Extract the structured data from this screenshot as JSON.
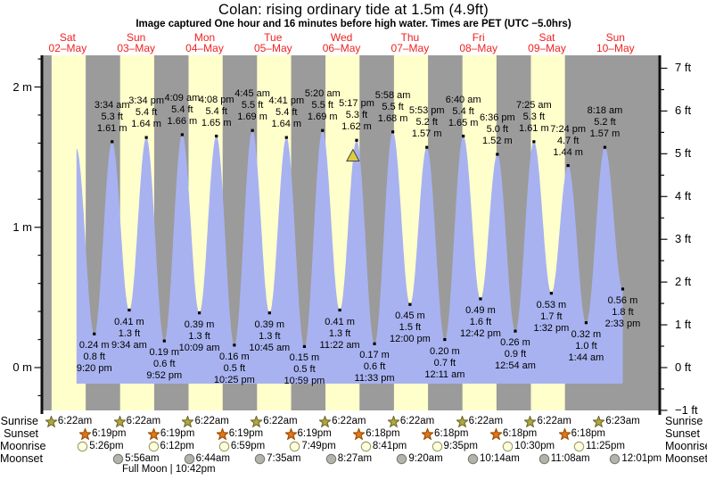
{
  "header": {
    "title": "Colan: rising  ordinary tide at 1.5m (4.9ft)",
    "subtitle": "Image captured One hour and 16 minutes before high water. Times are PET (UTC −5.0hrs)"
  },
  "day_labels": [
    {
      "weekday": "Sat",
      "date": "02–May"
    },
    {
      "weekday": "Sun",
      "date": "03–May"
    },
    {
      "weekday": "Mon",
      "date": "04–May"
    },
    {
      "weekday": "Tue",
      "date": "05–May"
    },
    {
      "weekday": "Wed",
      "date": "06–May"
    },
    {
      "weekday": "Thu",
      "date": "07–May"
    },
    {
      "weekday": "Fri",
      "date": "08–May"
    },
    {
      "weekday": "Sat",
      "date": "09–May"
    },
    {
      "weekday": "Sun",
      "date": "10–May"
    }
  ],
  "colors": {
    "day_band": "#ffffcc",
    "night_band": "#9b9b9b",
    "water": "#a8b2f0",
    "date_red": "#ee2222",
    "sunrise_star": "#b5a642",
    "sunrise_star_edge": "#6b6b2a",
    "sunset_star": "#e07818",
    "sunset_star_edge": "#9a4a00",
    "moonrise_circle": "#ffffdd",
    "moonrise_circle_edge": "#999966",
    "moonset_circle": "#b3b3ab",
    "moonset_circle_edge": "#7a7a72",
    "marker_fill": "#ddcc44",
    "marker_edge": "#444444"
  },
  "chart_data": {
    "type": "area",
    "title": "Colan tide heights 02-May to 10-May",
    "x_axis": "days (midnight-to-midnight, 9 days)",
    "y_left": {
      "unit": "m",
      "ticks": [
        0,
        1,
        2
      ],
      "tick_labels": [
        "0 m",
        "1 m",
        "2 m"
      ],
      "minor_step": 0.2,
      "range": [
        -0.3,
        2.25
      ]
    },
    "y_right": {
      "unit": "ft",
      "ticks": [
        -1,
        0,
        1,
        2,
        3,
        4,
        5,
        6,
        7
      ],
      "tick_labels": [
        "−1 ft",
        "0 ft",
        "1 ft",
        "2 ft",
        "3 ft",
        "4 ft",
        "5 ft",
        "6 ft",
        "7 ft"
      ],
      "minor_step": 0.5
    },
    "events": [
      {
        "type": "high",
        "t": 15.08,
        "m": 1.56,
        "label": []
      },
      {
        "type": "low",
        "t": 21.33,
        "m": 0.24,
        "label": [
          "0.24 m",
          "0.8 ft",
          "9:20 pm"
        ]
      },
      {
        "type": "high",
        "t": 27.57,
        "m": 1.61,
        "label": [
          "3:34 am",
          "5.3 ft",
          "1.61 m"
        ]
      },
      {
        "type": "low",
        "t": 33.57,
        "m": 0.41,
        "label": [
          "0.41 m",
          "1.3 ft",
          "9:34 am"
        ]
      },
      {
        "type": "high",
        "t": 39.57,
        "m": 1.64,
        "label": [
          "3:34 pm",
          "5.4 ft",
          "1.64 m"
        ]
      },
      {
        "type": "low",
        "t": 45.87,
        "m": 0.19,
        "label": [
          "0.19 m",
          "0.6 ft",
          "9:52 pm"
        ]
      },
      {
        "type": "high",
        "t": 52.15,
        "m": 1.66,
        "label": [
          "4:09 am",
          "5.4 ft",
          "1.66 m"
        ]
      },
      {
        "type": "low",
        "t": 58.15,
        "m": 0.39,
        "label": [
          "0.39 m",
          "1.3 ft",
          "10:09 am"
        ]
      },
      {
        "type": "high",
        "t": 64.13,
        "m": 1.65,
        "label": [
          "4:08 pm",
          "5.4 ft",
          "1.65 m"
        ]
      },
      {
        "type": "low",
        "t": 70.42,
        "m": 0.16,
        "label": [
          "0.16 m",
          "0.5 ft",
          "10:25 pm"
        ]
      },
      {
        "type": "high",
        "t": 76.75,
        "m": 1.69,
        "label": [
          "4:45 am",
          "5.5 ft",
          "1.69 m"
        ]
      },
      {
        "type": "low",
        "t": 82.75,
        "m": 0.39,
        "label": [
          "0.39 m",
          "1.3 ft",
          "10:45 am"
        ]
      },
      {
        "type": "high",
        "t": 88.68,
        "m": 1.64,
        "label": [
          "4:41 pm",
          "5.4 ft",
          "1.64 m"
        ]
      },
      {
        "type": "low",
        "t": 94.98,
        "m": 0.15,
        "label": [
          "0.15 m",
          "0.5 ft",
          "10:59 pm"
        ]
      },
      {
        "type": "high",
        "t": 101.33,
        "m": 1.69,
        "label": [
          "5:20 am",
          "5.5 ft",
          "1.69 m"
        ]
      },
      {
        "type": "low",
        "t": 107.37,
        "m": 0.41,
        "label": [
          "0.41 m",
          "1.3 ft",
          "11:22 am"
        ]
      },
      {
        "type": "high",
        "t": 113.28,
        "m": 1.62,
        "label": [
          "5:17 pm",
          "5.3 ft",
          "1.62 m"
        ]
      },
      {
        "type": "low",
        "t": 119.55,
        "m": 0.17,
        "label": [
          "0.17 m",
          "0.6 ft",
          "11:33 pm"
        ]
      },
      {
        "type": "high",
        "t": 125.97,
        "m": 1.68,
        "label": [
          "5:58 am",
          "5.5 ft",
          "1.68 m"
        ]
      },
      {
        "type": "low",
        "t": 132.0,
        "m": 0.45,
        "label": [
          "0.45 m",
          "1.5 ft",
          "12:00 pm"
        ]
      },
      {
        "type": "high",
        "t": 137.88,
        "m": 1.57,
        "label": [
          "5:53 pm",
          "5.2 ft",
          "1.57 m"
        ]
      },
      {
        "type": "low",
        "t": 144.18,
        "m": 0.2,
        "label": [
          "0.20 m",
          "0.7 ft",
          "12:11 am"
        ]
      },
      {
        "type": "high",
        "t": 150.67,
        "m": 1.65,
        "label": [
          "6:40 am",
          "5.4 ft",
          "1.65 m"
        ]
      },
      {
        "type": "low",
        "t": 156.7,
        "m": 0.49,
        "label": [
          "0.49 m",
          "1.6 ft",
          "12:42 pm"
        ]
      },
      {
        "type": "high",
        "t": 162.6,
        "m": 1.52,
        "label": [
          "6:36 pm",
          "5.0 ft",
          "1.52 m"
        ]
      },
      {
        "type": "low",
        "t": 168.9,
        "m": 0.26,
        "label": [
          "0.26 m",
          "0.9 ft",
          "12:54 am"
        ]
      },
      {
        "type": "high",
        "t": 175.42,
        "m": 1.61,
        "label": [
          "7:25 am",
          "5.3 ft",
          "1.61 m"
        ]
      },
      {
        "type": "low",
        "t": 181.53,
        "m": 0.53,
        "label": [
          "0.53 m",
          "1.7 ft",
          "1:32 pm"
        ]
      },
      {
        "type": "high",
        "t": 187.4,
        "m": 1.44,
        "label": [
          "7:24 pm",
          "4.7 ft",
          "1.44 m"
        ]
      },
      {
        "type": "low",
        "t": 193.73,
        "m": 0.32,
        "label": [
          "0.32 m",
          "1.0 ft",
          "1:44 am"
        ]
      },
      {
        "type": "high",
        "t": 200.3,
        "m": 1.57,
        "label": [
          "8:18 am",
          "5.2 ft",
          "1.57 m"
        ]
      },
      {
        "type": "low",
        "t": 206.55,
        "m": 0.56,
        "label": [
          "0.56 m",
          "1.8 ft",
          "2:33 pm"
        ]
      }
    ],
    "current_marker": {
      "t": 112.0,
      "m": 1.51,
      "meaning": "image captured 1h16m before 5:17 pm high water"
    }
  },
  "sun_moon": {
    "rows": [
      {
        "id": "sunrise",
        "label": "Sunrise",
        "icon": "sunrise-star",
        "items": [
          {
            "t": 6.37,
            "time": "6:22am"
          },
          {
            "t": 30.37,
            "time": "6:22am"
          },
          {
            "t": 54.37,
            "time": "6:22am"
          },
          {
            "t": 78.37,
            "time": "6:22am"
          },
          {
            "t": 102.37,
            "time": "6:22am"
          },
          {
            "t": 126.37,
            "time": "6:22am"
          },
          {
            "t": 150.37,
            "time": "6:22am"
          },
          {
            "t": 174.37,
            "time": "6:22am"
          },
          {
            "t": 198.38,
            "time": "6:23am"
          }
        ]
      },
      {
        "id": "sunset",
        "label": "Sunset",
        "icon": "sunset-star",
        "items": [
          {
            "t": 18.32,
            "time": "6:19pm"
          },
          {
            "t": 42.32,
            "time": "6:19pm"
          },
          {
            "t": 66.32,
            "time": "6:19pm"
          },
          {
            "t": 90.32,
            "time": "6:19pm"
          },
          {
            "t": 114.3,
            "time": "6:18pm"
          },
          {
            "t": 138.3,
            "time": "6:18pm"
          },
          {
            "t": 162.3,
            "time": "6:18pm"
          },
          {
            "t": 186.3,
            "time": "6:18pm"
          }
        ]
      },
      {
        "id": "moonrise",
        "label": "Moonrise",
        "icon": "moonrise-circle",
        "items": [
          {
            "t": 17.43,
            "time": "5:26pm"
          },
          {
            "t": 42.2,
            "time": "6:12pm"
          },
          {
            "t": 66.98,
            "time": "6:59pm"
          },
          {
            "t": 91.82,
            "time": "7:49pm"
          },
          {
            "t": 116.68,
            "time": "8:41pm"
          },
          {
            "t": 141.58,
            "time": "9:35pm"
          },
          {
            "t": 166.5,
            "time": "10:30pm"
          },
          {
            "t": 191.42,
            "time": "11:25pm"
          }
        ]
      },
      {
        "id": "moonset",
        "label": "Moonset",
        "icon": "moonset-circle",
        "items": [
          {
            "t": 29.93,
            "time": "5:56am"
          },
          {
            "t": 54.73,
            "time": "6:44am"
          },
          {
            "t": 79.58,
            "time": "7:35am"
          },
          {
            "t": 104.45,
            "time": "8:27am"
          },
          {
            "t": 129.33,
            "time": "9:20am"
          },
          {
            "t": 154.23,
            "time": "10:14am"
          },
          {
            "t": 179.13,
            "time": "11:08am"
          },
          {
            "t": 204.02,
            "time": "12:01pm"
          }
        ]
      }
    ]
  },
  "footer": {
    "full_moon": "Full Moon | 10:42pm"
  }
}
